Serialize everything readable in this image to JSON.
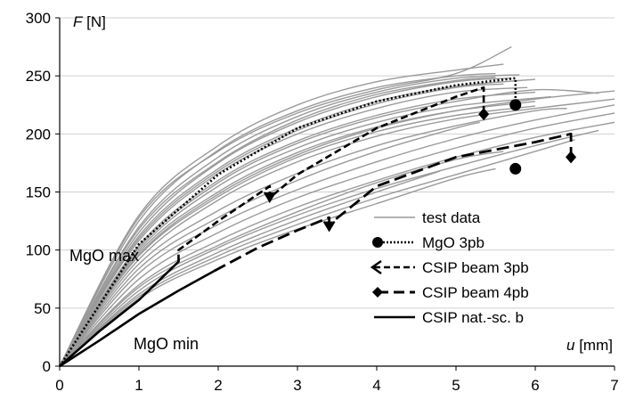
{
  "chart_data": {
    "type": "line",
    "xlabel_var": "u",
    "xlabel_unit": "[mm]",
    "ylabel_var": "F",
    "ylabel_unit": "[N]",
    "xlim": [
      0,
      7
    ],
    "ylim": [
      0,
      300
    ],
    "x_ticks": [
      0,
      1,
      2,
      3,
      4,
      5,
      6,
      7
    ],
    "y_ticks": [
      0,
      50,
      100,
      150,
      200,
      250,
      300
    ],
    "grid": "horizontal",
    "legend_position": "lower-right",
    "annotations": [
      {
        "text": "MgO max",
        "x": 0.1,
        "y": 95
      },
      {
        "text": "MgO min",
        "x": 0.9,
        "y": 13
      }
    ],
    "test_data_upper": [
      [
        [
          0,
          0
        ],
        [
          1,
          130
        ],
        [
          2,
          190
        ],
        [
          3,
          225
        ],
        [
          4,
          245
        ],
        [
          5,
          255
        ],
        [
          5.6,
          260
        ]
      ],
      [
        [
          0,
          0
        ],
        [
          1,
          125
        ],
        [
          2,
          186
        ],
        [
          3,
          220
        ],
        [
          4,
          240
        ],
        [
          5,
          250
        ],
        [
          5.5,
          252
        ]
      ],
      [
        [
          0,
          0
        ],
        [
          1,
          120
        ],
        [
          2,
          180
        ],
        [
          3,
          215
        ],
        [
          4,
          236
        ],
        [
          5,
          248
        ],
        [
          5.8,
          251
        ]
      ],
      [
        [
          0,
          0
        ],
        [
          1,
          115
        ],
        [
          2,
          175
        ],
        [
          3,
          210
        ],
        [
          4,
          232
        ],
        [
          5,
          245
        ],
        [
          5.7,
          248
        ]
      ],
      [
        [
          0,
          0
        ],
        [
          1,
          112
        ],
        [
          2,
          170
        ],
        [
          3,
          205
        ],
        [
          4,
          228
        ],
        [
          5,
          241
        ],
        [
          6,
          247
        ]
      ],
      [
        [
          0,
          0
        ],
        [
          1,
          108
        ],
        [
          2,
          166
        ],
        [
          3,
          200
        ],
        [
          4,
          222
        ],
        [
          5,
          236
        ],
        [
          5.9,
          240
        ]
      ],
      [
        [
          0,
          0
        ],
        [
          1,
          104
        ],
        [
          2,
          160
        ],
        [
          3,
          194
        ],
        [
          4,
          216
        ],
        [
          5,
          230
        ],
        [
          6,
          236
        ]
      ],
      [
        [
          0,
          0
        ],
        [
          1,
          100
        ],
        [
          2,
          155
        ],
        [
          3,
          188
        ],
        [
          4,
          210
        ],
        [
          5,
          224
        ],
        [
          6.2,
          232
        ]
      ],
      [
        [
          0,
          0
        ],
        [
          1,
          98
        ],
        [
          2,
          150
        ],
        [
          3,
          184
        ],
        [
          4,
          206
        ],
        [
          5,
          220
        ],
        [
          6,
          228
        ]
      ],
      [
        [
          0,
          0
        ],
        [
          1,
          95
        ],
        [
          2,
          146
        ],
        [
          3,
          180
        ],
        [
          4,
          202
        ],
        [
          5,
          216
        ],
        [
          6,
          224
        ]
      ],
      [
        [
          0,
          0
        ],
        [
          1,
          128
        ],
        [
          2,
          185
        ],
        [
          3,
          218
        ],
        [
          4,
          238
        ],
        [
          5,
          252
        ],
        [
          5.7,
          275
        ]
      ],
      [
        [
          0,
          0
        ],
        [
          1,
          118
        ],
        [
          2,
          176
        ],
        [
          3,
          212
        ],
        [
          4,
          234
        ],
        [
          5,
          246
        ],
        [
          5.5,
          249
        ]
      ],
      [
        [
          0,
          0
        ],
        [
          1,
          110
        ],
        [
          2,
          168
        ],
        [
          3,
          203
        ],
        [
          4,
          226
        ],
        [
          5,
          240
        ],
        [
          5.6,
          243
        ]
      ],
      [
        [
          0,
          0
        ],
        [
          1,
          102
        ],
        [
          2,
          158
        ],
        [
          3,
          192
        ],
        [
          4,
          214
        ],
        [
          5,
          228
        ],
        [
          6,
          238
        ],
        [
          6.8,
          235
        ]
      ],
      [
        [
          0,
          0
        ],
        [
          1,
          96
        ],
        [
          2,
          148
        ],
        [
          3,
          182
        ],
        [
          4,
          205
        ],
        [
          5,
          220
        ],
        [
          6,
          230
        ],
        [
          7,
          237
        ]
      ],
      [
        [
          0,
          0
        ],
        [
          1,
          92
        ],
        [
          2,
          143
        ],
        [
          3,
          176
        ],
        [
          4,
          198
        ],
        [
          5,
          213
        ],
        [
          6,
          222
        ],
        [
          7,
          230
        ]
      ]
    ],
    "test_data_lower": [
      [
        [
          0,
          0
        ],
        [
          1,
          60
        ],
        [
          2,
          95
        ],
        [
          3,
          122
        ],
        [
          4,
          145
        ],
        [
          5,
          165
        ],
        [
          6,
          185
        ],
        [
          6.5,
          195
        ]
      ],
      [
        [
          0,
          0
        ],
        [
          1,
          65
        ],
        [
          2,
          102
        ],
        [
          3,
          130
        ],
        [
          4,
          153
        ],
        [
          5,
          172
        ],
        [
          6,
          190
        ],
        [
          6.8,
          203
        ]
      ],
      [
        [
          0,
          0
        ],
        [
          1,
          70
        ],
        [
          2,
          108
        ],
        [
          3,
          137
        ],
        [
          4,
          160
        ],
        [
          5,
          180
        ],
        [
          6,
          197
        ],
        [
          7,
          210
        ]
      ],
      [
        [
          0,
          0
        ],
        [
          1,
          75
        ],
        [
          2,
          115
        ],
        [
          3,
          145
        ],
        [
          4,
          168
        ],
        [
          5,
          188
        ],
        [
          6,
          205
        ],
        [
          7,
          218
        ]
      ],
      [
        [
          0,
          0
        ],
        [
          1,
          80
        ],
        [
          2,
          122
        ],
        [
          3,
          152
        ],
        [
          4,
          176
        ],
        [
          5,
          196
        ],
        [
          6,
          212
        ],
        [
          7,
          225
        ]
      ],
      [
        [
          0,
          0
        ],
        [
          1,
          58
        ],
        [
          2,
          92
        ],
        [
          3,
          118
        ],
        [
          4,
          140
        ],
        [
          5,
          162
        ],
        [
          5.5,
          170
        ]
      ],
      [
        [
          0,
          0
        ],
        [
          1,
          62
        ],
        [
          2,
          98
        ],
        [
          3,
          126
        ],
        [
          4,
          150
        ],
        [
          4.8,
          168
        ]
      ],
      [
        [
          0,
          0
        ],
        [
          1,
          68
        ],
        [
          2,
          104
        ],
        [
          3,
          133
        ],
        [
          4,
          158
        ],
        [
          5,
          178
        ],
        [
          5.6,
          185
        ]
      ],
      [
        [
          0,
          0
        ],
        [
          1,
          84
        ],
        [
          2,
          128
        ],
        [
          3,
          160
        ],
        [
          4,
          185
        ],
        [
          5,
          205
        ],
        [
          5.3,
          210
        ]
      ],
      [
        [
          0,
          0
        ],
        [
          1,
          88
        ],
        [
          2,
          134
        ],
        [
          3,
          166
        ],
        [
          4,
          190
        ],
        [
          5,
          207
        ],
        [
          6,
          220
        ],
        [
          6.4,
          222
        ]
      ]
    ],
    "series": [
      {
        "name": "test data",
        "style": "thin-gray",
        "color": "#999999",
        "values": []
      },
      {
        "name": "MgO 3pb",
        "style": "dotted",
        "color": "#000000",
        "marker": "circle",
        "values": [
          [
            0,
            0
          ],
          [
            1,
            105
          ],
          [
            2,
            165
          ],
          [
            3,
            205
          ],
          [
            4,
            228
          ],
          [
            5,
            242
          ],
          [
            5.75,
            248
          ],
          [
            5.75,
            228
          ]
        ],
        "markers": [
          [
            5.75,
            225
          ],
          [
            5.75,
            170
          ]
        ]
      },
      {
        "name": "CSIP beam 3pb",
        "style": "dashed",
        "color": "#000000",
        "marker": "arrow-down",
        "values": [
          [
            1.5,
            90
          ],
          [
            1.5,
            100
          ],
          [
            2,
            125
          ],
          [
            2.65,
            155
          ],
          [
            2.65,
            145
          ],
          [
            3,
            165
          ],
          [
            4,
            205
          ],
          [
            5,
            232
          ],
          [
            5.35,
            240
          ],
          [
            5.35,
            218
          ]
        ],
        "markers": [
          [
            2.65,
            145
          ],
          [
            3.4,
            120
          ]
        ]
      },
      {
        "name": "CSIP beam 4pb",
        "style": "long-dashed",
        "color": "#000000",
        "marker": "diamond",
        "values": [
          [
            1.95,
            82
          ],
          [
            2.5,
            102
          ],
          [
            3,
            117
          ],
          [
            3.4,
            128
          ],
          [
            3.4,
            122
          ],
          [
            4,
            155
          ],
          [
            5,
            180
          ],
          [
            6,
            193
          ],
          [
            6.45,
            200
          ],
          [
            6.45,
            180
          ]
        ],
        "markers": [
          [
            5.35,
            217
          ],
          [
            6.45,
            180
          ]
        ]
      },
      {
        "name": "CSIP nat.-sc. b",
        "style": "solid",
        "color": "#000000",
        "values": [
          [
            0,
            0
          ],
          [
            0.5,
            30
          ],
          [
            1,
            57
          ],
          [
            1.5,
            90
          ],
          [
            1.5,
            92
          ]
        ],
        "values2": [
          [
            0,
            0
          ],
          [
            0.5,
            22
          ],
          [
            1,
            45
          ],
          [
            1.5,
            65
          ],
          [
            1.95,
            82
          ]
        ]
      }
    ]
  },
  "legend": {
    "items": [
      {
        "label": "test data"
      },
      {
        "label": "MgO 3pb"
      },
      {
        "label": "CSIP beam 3pb"
      },
      {
        "label": "CSIP beam 4pb"
      },
      {
        "label": "CSIP nat.-sc. b"
      }
    ]
  }
}
